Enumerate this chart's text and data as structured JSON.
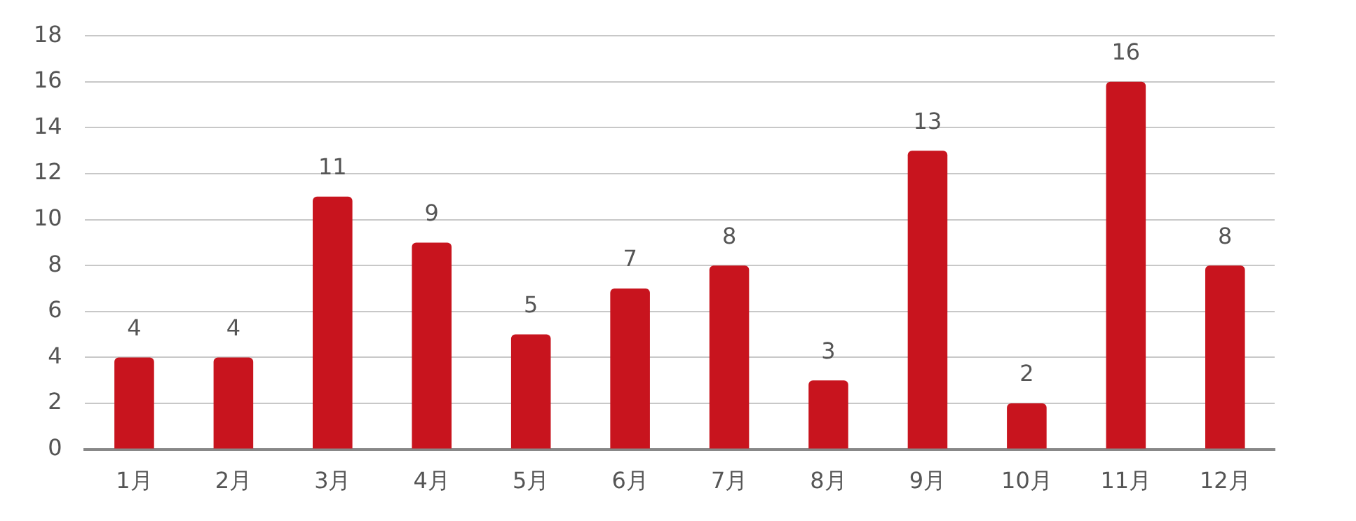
{
  "chart_data": {
    "type": "bar",
    "categories": [
      "1月",
      "2月",
      "3月",
      "4月",
      "5月",
      "6月",
      "7月",
      "8月",
      "9月",
      "10月",
      "11月",
      "12月"
    ],
    "values": [
      4,
      4,
      11,
      9,
      5,
      7,
      8,
      3,
      13,
      2,
      16,
      8
    ],
    "color": "#c8141e",
    "ylim": [
      0,
      18
    ],
    "yticks": [
      0,
      2,
      4,
      6,
      8,
      10,
      12,
      14,
      16,
      18
    ],
    "grid": "y",
    "data_labels": true,
    "legend": false
  }
}
